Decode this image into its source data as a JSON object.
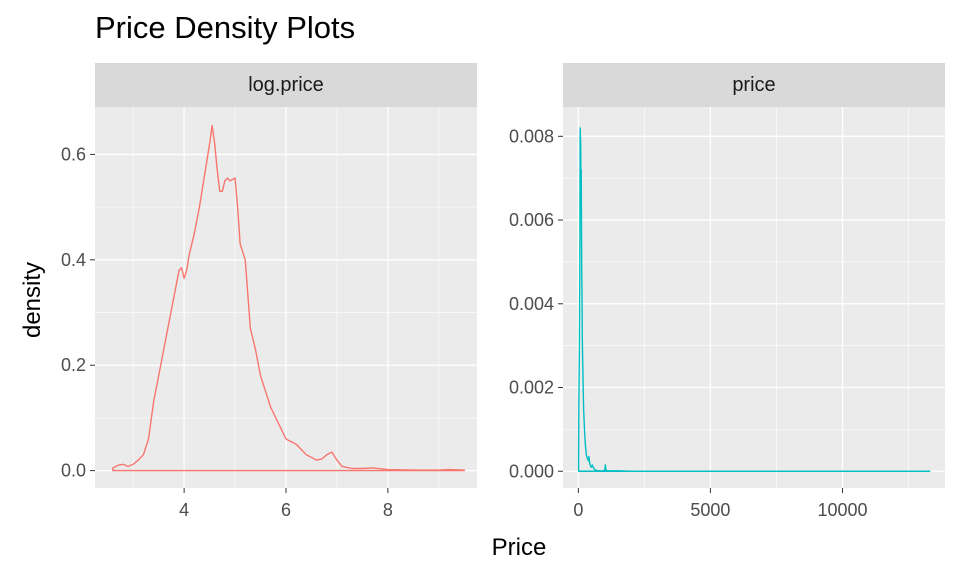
{
  "title": "Price Density Plots",
  "y_axis_title": "density",
  "x_axis_title": "Price",
  "chart_data": [
    {
      "type": "line",
      "facet_label": "log.price",
      "color": "#F8766D",
      "xlim": [
        2.25,
        9.75
      ],
      "ylim": [
        -0.033,
        0.69
      ],
      "x_ticks": [
        4,
        6,
        8
      ],
      "x_tick_labels": [
        "4",
        "6",
        "8"
      ],
      "y_ticks": [
        0.0,
        0.2,
        0.4,
        0.6
      ],
      "y_tick_labels": [
        "0.0",
        "0.2",
        "0.4",
        "0.6"
      ],
      "grid": true,
      "x": [
        2.6,
        2.7,
        2.8,
        2.9,
        3.0,
        3.1,
        3.2,
        3.3,
        3.4,
        3.5,
        3.6,
        3.7,
        3.8,
        3.9,
        3.95,
        4.0,
        4.05,
        4.1,
        4.2,
        4.3,
        4.4,
        4.5,
        4.55,
        4.6,
        4.65,
        4.7,
        4.75,
        4.8,
        4.85,
        4.9,
        5.0,
        5.05,
        5.1,
        5.2,
        5.3,
        5.4,
        5.5,
        5.6,
        5.7,
        5.8,
        5.9,
        6.0,
        6.1,
        6.2,
        6.3,
        6.4,
        6.5,
        6.6,
        6.7,
        6.8,
        6.9,
        7.0,
        7.1,
        7.3,
        7.5,
        7.7,
        8.0,
        8.5,
        9.0,
        9.2,
        9.5
      ],
      "y": [
        0.005,
        0.01,
        0.012,
        0.008,
        0.012,
        0.02,
        0.03,
        0.06,
        0.13,
        0.18,
        0.23,
        0.28,
        0.33,
        0.38,
        0.385,
        0.365,
        0.38,
        0.41,
        0.45,
        0.5,
        0.56,
        0.62,
        0.655,
        0.62,
        0.57,
        0.53,
        0.53,
        0.55,
        0.555,
        0.55,
        0.555,
        0.5,
        0.43,
        0.4,
        0.27,
        0.23,
        0.18,
        0.15,
        0.12,
        0.1,
        0.08,
        0.06,
        0.055,
        0.05,
        0.04,
        0.03,
        0.025,
        0.02,
        0.022,
        0.03,
        0.035,
        0.02,
        0.008,
        0.004,
        0.004,
        0.005,
        0.002,
        0.001,
        0.001,
        0.002,
        0.001
      ]
    },
    {
      "type": "line",
      "facet_label": "price",
      "color": "#00BFC4",
      "xlim": [
        -580,
        13880
      ],
      "ylim": [
        -0.0004,
        0.0087
      ],
      "x_ticks": [
        0,
        5000,
        10000
      ],
      "x_tick_labels": [
        "0",
        "5000",
        "10000"
      ],
      "y_ticks": [
        0.0,
        0.002,
        0.004,
        0.006,
        0.008
      ],
      "y_tick_labels": [
        "0.000",
        "0.002",
        "0.004",
        "0.006",
        "0.008"
      ],
      "grid": true,
      "x": [
        10,
        20,
        40,
        60,
        70,
        80,
        90,
        100,
        110,
        120,
        130,
        140,
        150,
        160,
        170,
        190,
        200,
        220,
        240,
        250,
        270,
        290,
        300,
        320,
        350,
        380,
        400,
        430,
        450,
        480,
        500,
        530,
        560,
        600,
        650,
        700,
        800,
        900,
        1000,
        1020,
        1050,
        1100,
        1500,
        2000,
        3000,
        5000,
        8000,
        10000,
        13300
      ],
      "y": [
        0.0002,
        0.0017,
        0.0028,
        0.0055,
        0.0082,
        0.008,
        0.0078,
        0.0065,
        0.0072,
        0.0058,
        0.0047,
        0.0042,
        0.0032,
        0.0028,
        0.0025,
        0.0018,
        0.0015,
        0.0012,
        0.0009,
        0.0008,
        0.0006,
        0.0005,
        0.0004,
        0.00035,
        0.0003,
        0.00025,
        0.00035,
        0.0002,
        0.00015,
        0.0001,
        0.0001,
        0.00015,
        0.0001,
        5e-05,
        3e-05,
        2e-05,
        1e-05,
        1e-05,
        2e-05,
        0.00015,
        3e-05,
        1e-05,
        1e-05,
        0.0,
        0.0,
        0.0,
        0.0,
        0.0,
        0.0
      ]
    }
  ]
}
